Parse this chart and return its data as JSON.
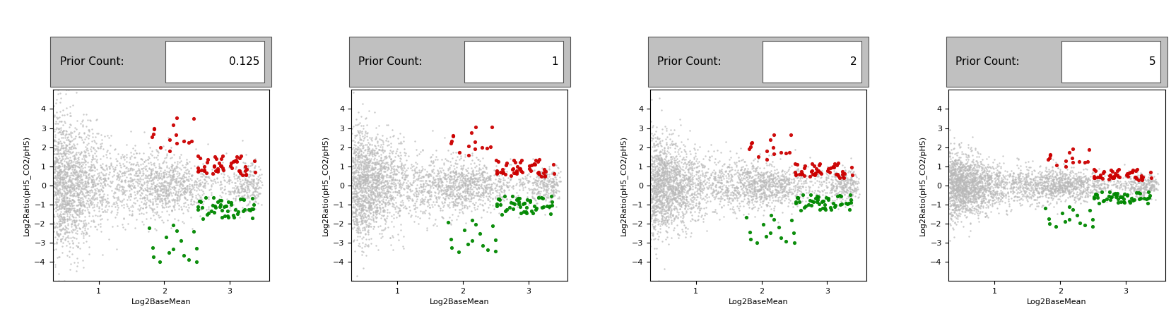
{
  "panels": [
    {
      "prior_count": "0.125",
      "prior_count_float": 0.125
    },
    {
      "prior_count": "1",
      "prior_count_float": 1.0
    },
    {
      "prior_count": "2",
      "prior_count_float": 2.0
    },
    {
      "prior_count": "5",
      "prior_count_float": 5.0
    }
  ],
  "xlabel": "Log2BaseMean",
  "ylabel": "Log2Ratio(pH5_CO2/pH5)",
  "xlim": [
    0.3,
    3.6
  ],
  "ylim": [
    -5,
    5
  ],
  "xticks": [
    1,
    2,
    3
  ],
  "yticks": [
    -4,
    -3,
    -2,
    -1,
    0,
    1,
    2,
    3,
    4
  ],
  "gray_color": "#b8b8b8",
  "red_color": "#cc0000",
  "green_color": "#008800",
  "header_bg": "#c0c0c0",
  "label_fontsize": 8,
  "tick_fontsize": 8,
  "header_fontsize": 11,
  "value_fontsize": 11,
  "seed": 42,
  "n_gray": 3000,
  "n_red": 65,
  "n_green": 65
}
